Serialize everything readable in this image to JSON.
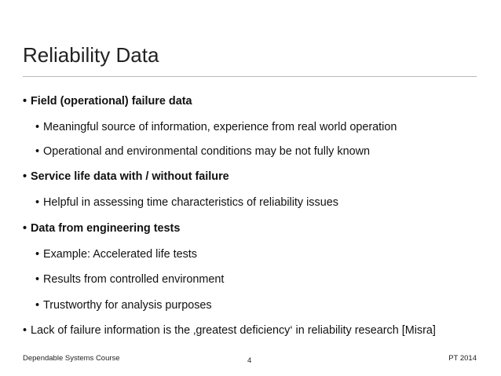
{
  "slide": {
    "title": "Reliability Data",
    "bullet_glyph": "•",
    "bullets": [
      {
        "level": 1,
        "bold": true,
        "text": "Field (operational) failure data"
      },
      {
        "level": 2,
        "bold": false,
        "text": "Meaningful source of information, experience from real world operation"
      },
      {
        "level": 2,
        "bold": false,
        "text": "Operational and environmental conditions may be not fully known"
      },
      {
        "level": 1,
        "bold": true,
        "text": "Service life data with / without failure"
      },
      {
        "level": 2,
        "bold": false,
        "text": "Helpful in assessing time characteristics of reliability issues"
      },
      {
        "level": 1,
        "bold": true,
        "text": "Data from engineering tests"
      },
      {
        "level": 2,
        "bold": false,
        "text": "Example: Accelerated life tests"
      },
      {
        "level": 2,
        "bold": false,
        "text": "Results from controlled environment"
      },
      {
        "level": 2,
        "bold": false,
        "text": "Trustworthy for analysis purposes"
      },
      {
        "level": 1,
        "bold": false,
        "text": "Lack of failure information is the ‚greatest deficiency‘ in reliability research [Misra]"
      }
    ],
    "footer": {
      "left": "Dependable Systems Course",
      "page_number": "4",
      "right": "PT 2014"
    }
  }
}
